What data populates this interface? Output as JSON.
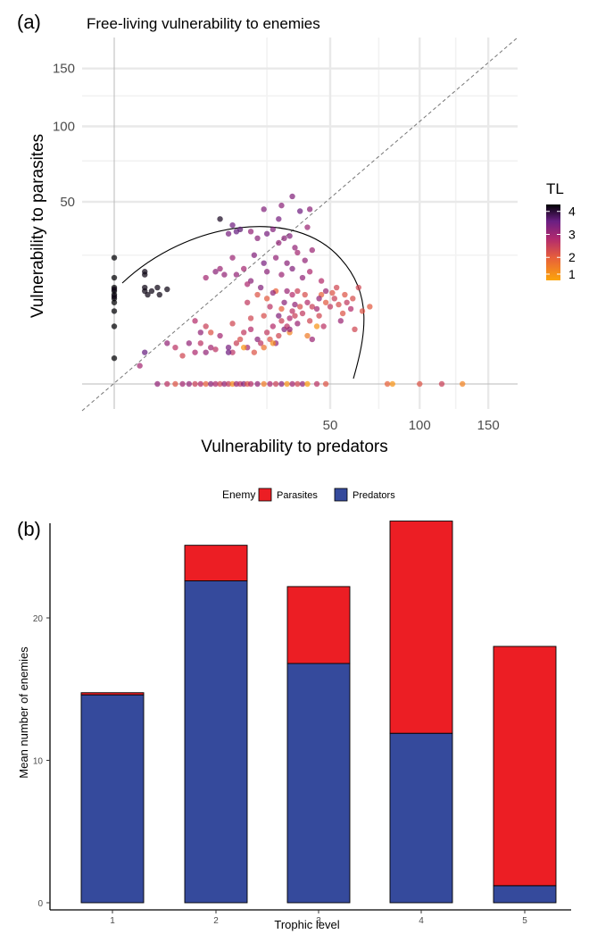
{
  "chart_data": [
    {
      "type": "scatter",
      "panel_label": "(a)",
      "title": "Free-living vulnerability to enemies",
      "xlabel": "Vulnerability to predators",
      "ylabel": "Vulnerability to parasites",
      "scale": "square-root",
      "x_ticks": [
        50,
        100,
        150
      ],
      "x_tick_labels": [
        "50",
        "100",
        "150"
      ],
      "y_ticks": [
        50,
        100,
        150
      ],
      "y_tick_labels": [
        "50",
        "100",
        "150"
      ],
      "xlim": [
        -3,
        170
      ],
      "ylim": [
        -3,
        175
      ],
      "grid": true,
      "reference_line": "y = x",
      "color_legend": {
        "title": "TL",
        "ticks": [
          4,
          3,
          2,
          1
        ],
        "range": [
          1,
          4.3
        ],
        "colors": [
          "#fca50a",
          "#e75f3b",
          "#b12a6e",
          "#6a1f83",
          "#000004"
        ]
      },
      "points": [
        {
          "x": 0,
          "y": 24,
          "tl": 4.3
        },
        {
          "x": 0,
          "y": 17,
          "tl": 4.3
        },
        {
          "x": 0,
          "y": 14,
          "tl": 4.3
        },
        {
          "x": 0,
          "y": 13,
          "tl": 4.3
        },
        {
          "x": 0,
          "y": 12,
          "tl": 4.3
        },
        {
          "x": 0,
          "y": 11,
          "tl": 4.3
        },
        {
          "x": 0,
          "y": 10,
          "tl": 4.3
        },
        {
          "x": 0,
          "y": 8,
          "tl": 4.3
        },
        {
          "x": 0,
          "y": 5,
          "tl": 4.3
        },
        {
          "x": 0,
          "y": 1,
          "tl": 4.3
        },
        {
          "x": 0,
          "y": 13.5,
          "tl": 4.2
        },
        {
          "x": 0,
          "y": 11.5,
          "tl": 4.2
        },
        {
          "x": 1,
          "y": 19,
          "tl": 4.2
        },
        {
          "x": 1,
          "y": 18,
          "tl": 4.2
        },
        {
          "x": 1,
          "y": 14,
          "tl": 4.2
        },
        {
          "x": 1,
          "y": 13,
          "tl": 4.2
        },
        {
          "x": 1.2,
          "y": 12,
          "tl": 4.2
        },
        {
          "x": 1.5,
          "y": 13,
          "tl": 4.2
        },
        {
          "x": 2,
          "y": 14,
          "tl": 4.2
        },
        {
          "x": 2.2,
          "y": 12,
          "tl": 4.2
        },
        {
          "x": 3,
          "y": 13.5,
          "tl": 4.2
        },
        {
          "x": 1,
          "y": 1.5,
          "tl": 3.5
        },
        {
          "x": 0.7,
          "y": 0.5,
          "tl": 2.8
        },
        {
          "x": 3,
          "y": 2.5,
          "tl": 3.0
        },
        {
          "x": 4,
          "y": 2,
          "tl": 2.5
        },
        {
          "x": 5,
          "y": 1.2,
          "tl": 2.2
        },
        {
          "x": 6,
          "y": 2.5,
          "tl": 3.0
        },
        {
          "x": 7,
          "y": 1.5,
          "tl": 2.7
        },
        {
          "x": 8,
          "y": 2.5,
          "tl": 2.5
        },
        {
          "x": 9,
          "y": 1.5,
          "tl": 3.0
        },
        {
          "x": 10,
          "y": 2,
          "tl": 2.8
        },
        {
          "x": 11,
          "y": 1.8,
          "tl": 2.5
        },
        {
          "x": 8,
          "y": 4,
          "tl": 3.0
        },
        {
          "x": 10,
          "y": 4,
          "tl": 2.0
        },
        {
          "x": 12,
          "y": 3.5,
          "tl": 2.8
        },
        {
          "x": 14,
          "y": 2,
          "tl": 3.3
        },
        {
          "x": 15,
          "y": 1.5,
          "tl": 2.5
        },
        {
          "x": 16,
          "y": 2.5,
          "tl": 2.3
        },
        {
          "x": 17,
          "y": 3,
          "tl": 2.1
        },
        {
          "x": 18,
          "y": 4,
          "tl": 2.4
        },
        {
          "x": 19,
          "y": 2,
          "tl": 2.8
        },
        {
          "x": 20,
          "y": 4.5,
          "tl": 2.6
        },
        {
          "x": 21,
          "y": 1.5,
          "tl": 2.0
        },
        {
          "x": 22,
          "y": 3,
          "tl": 3.1
        },
        {
          "x": 23,
          "y": 2.5,
          "tl": 2.5
        },
        {
          "x": 24,
          "y": 2,
          "tl": 1.6
        },
        {
          "x": 25,
          "y": 4,
          "tl": 2.4
        },
        {
          "x": 26,
          "y": 3,
          "tl": 2.0
        },
        {
          "x": 27,
          "y": 5,
          "tl": 2.6
        },
        {
          "x": 28,
          "y": 2.5,
          "tl": 3.0
        },
        {
          "x": 29,
          "y": 3.5,
          "tl": 2.2
        },
        {
          "x": 30,
          "y": 6,
          "tl": 2.3
        },
        {
          "x": 31,
          "y": 4.5,
          "tl": 3.2
        },
        {
          "x": 32,
          "y": 5,
          "tl": 2.5
        },
        {
          "x": 33,
          "y": 6.5,
          "tl": 2.7
        },
        {
          "x": 34,
          "y": 8,
          "tl": 2.5
        },
        {
          "x": 35,
          "y": 7,
          "tl": 2.3
        },
        {
          "x": 36,
          "y": 5.5,
          "tl": 2.9
        },
        {
          "x": 37,
          "y": 9,
          "tl": 2.1
        },
        {
          "x": 38,
          "y": 7.5,
          "tl": 2.4
        },
        {
          "x": 40,
          "y": 10,
          "tl": 2.6
        },
        {
          "x": 41,
          "y": 6,
          "tl": 2.2
        },
        {
          "x": 42,
          "y": 9,
          "tl": 2.3
        },
        {
          "x": 44,
          "y": 8.5,
          "tl": 2.8
        },
        {
          "x": 45,
          "y": 7,
          "tl": 2.2
        },
        {
          "x": 47,
          "y": 5,
          "tl": 2.5
        },
        {
          "x": 48,
          "y": 10,
          "tl": 1.9
        },
        {
          "x": 50,
          "y": 9,
          "tl": 2.4
        },
        {
          "x": 52,
          "y": 11,
          "tl": 2.3
        },
        {
          "x": 54,
          "y": 9.5,
          "tl": 2.1
        },
        {
          "x": 56,
          "y": 7.5,
          "tl": 2.0
        },
        {
          "x": 58,
          "y": 10,
          "tl": 2.4
        },
        {
          "x": 60,
          "y": 8.5,
          "tl": 2.6
        },
        {
          "x": 62,
          "y": 4.5,
          "tl": 2.2
        },
        {
          "x": 66,
          "y": 8,
          "tl": 2.0
        },
        {
          "x": 51,
          "y": 12.5,
          "tl": 2.0
        },
        {
          "x": 55,
          "y": 6,
          "tl": 2.9
        },
        {
          "x": 46,
          "y": 12,
          "tl": 1.8
        },
        {
          "x": 39,
          "y": 12,
          "tl": 2.1
        },
        {
          "x": 30,
          "y": 8.5,
          "tl": 1.8
        },
        {
          "x": 24,
          "y": 7,
          "tl": 2.1
        },
        {
          "x": 20,
          "y": 6.5,
          "tl": 2.2
        },
        {
          "x": 26,
          "y": 9,
          "tl": 2.5
        },
        {
          "x": 19,
          "y": 10,
          "tl": 2.4
        },
        {
          "x": 15,
          "y": 5.5,
          "tl": 2.2
        },
        {
          "x": 22,
          "y": 12,
          "tl": 2.0
        },
        {
          "x": 34,
          "y": 12,
          "tl": 2.6
        },
        {
          "x": 36,
          "y": 13,
          "tl": 2.3
        },
        {
          "x": 28,
          "y": 13,
          "tl": 1.8
        },
        {
          "x": 25,
          "y": 11,
          "tl": 1.9
        },
        {
          "x": 33,
          "y": 4,
          "tl": 1.4
        },
        {
          "x": 40,
          "y": 3.5,
          "tl": 1.5
        },
        {
          "x": 27,
          "y": 2.5,
          "tl": 1.3
        },
        {
          "x": 18,
          "y": 2,
          "tl": 1.2
        },
        {
          "x": 44,
          "y": 5,
          "tl": 1.2
        },
        {
          "x": 7,
          "y": 6,
          "tl": 2.6
        },
        {
          "x": 9,
          "y": 5,
          "tl": 2.3
        },
        {
          "x": 15,
          "y": 38,
          "tl": 3.4
        },
        {
          "x": 16,
          "y": 35,
          "tl": 3.5
        },
        {
          "x": 17,
          "y": 36,
          "tl": 3.6
        },
        {
          "x": 14,
          "y": 34,
          "tl": 3.3
        },
        {
          "x": 20,
          "y": 35,
          "tl": 3.0
        },
        {
          "x": 22,
          "y": 32,
          "tl": 3.1
        },
        {
          "x": 25,
          "y": 34,
          "tl": 3.3
        },
        {
          "x": 27,
          "y": 36,
          "tl": 3.2
        },
        {
          "x": 29,
          "y": 30,
          "tl": 3.0
        },
        {
          "x": 31,
          "y": 32,
          "tl": 3.1
        },
        {
          "x": 33,
          "y": 33,
          "tl": 3.2
        },
        {
          "x": 12,
          "y": 41,
          "tl": 4.1
        },
        {
          "x": 29,
          "y": 41,
          "tl": 3.3
        },
        {
          "x": 34,
          "y": 53,
          "tl": 3.2
        },
        {
          "x": 37,
          "y": 45,
          "tl": 3.4
        },
        {
          "x": 30,
          "y": 48,
          "tl": 3.1
        },
        {
          "x": 24,
          "y": 46,
          "tl": 3.2
        },
        {
          "x": 41,
          "y": 46,
          "tl": 3.1
        },
        {
          "x": 40,
          "y": 37,
          "tl": 2.9
        },
        {
          "x": 35,
          "y": 28,
          "tl": 3.0
        },
        {
          "x": 21,
          "y": 25,
          "tl": 3.2
        },
        {
          "x": 24,
          "y": 22,
          "tl": 3.3
        },
        {
          "x": 28,
          "y": 24,
          "tl": 3.0
        },
        {
          "x": 32,
          "y": 22,
          "tl": 3.1
        },
        {
          "x": 36,
          "y": 26,
          "tl": 2.8
        },
        {
          "x": 39,
          "y": 23,
          "tl": 3.0
        },
        {
          "x": 42,
          "y": 27,
          "tl": 2.9
        },
        {
          "x": 25,
          "y": 19,
          "tl": 3.1
        },
        {
          "x": 30,
          "y": 18,
          "tl": 2.9
        },
        {
          "x": 34,
          "y": 20,
          "tl": 3.2
        },
        {
          "x": 38,
          "y": 17,
          "tl": 3.0
        },
        {
          "x": 41,
          "y": 19,
          "tl": 2.7
        },
        {
          "x": 46,
          "y": 16,
          "tl": 2.6
        },
        {
          "x": 20,
          "y": 16,
          "tl": 3.1
        },
        {
          "x": 23,
          "y": 14,
          "tl": 3.2
        },
        {
          "x": 27,
          "y": 12.5,
          "tl": 3.0
        },
        {
          "x": 32,
          "y": 13,
          "tl": 2.9
        },
        {
          "x": 15,
          "y": 24,
          "tl": 2.9
        },
        {
          "x": 18,
          "y": 20,
          "tl": 2.8
        },
        {
          "x": 12,
          "y": 20,
          "tl": 2.9
        },
        {
          "x": 13,
          "y": 18,
          "tl": 3.0
        },
        {
          "x": 11,
          "y": 19,
          "tl": 3.1
        },
        {
          "x": 9,
          "y": 17,
          "tl": 2.8
        },
        {
          "x": 16,
          "y": 18,
          "tl": 3.0
        },
        {
          "x": 19,
          "y": 15,
          "tl": 2.7
        },
        {
          "x": 35,
          "y": 9.5,
          "tl": 3.0
        },
        {
          "x": 31,
          "y": 10,
          "tl": 3.1
        },
        {
          "x": 29,
          "y": 7,
          "tl": 3.2
        },
        {
          "x": 33,
          "y": 4.5,
          "tl": 3.0
        },
        {
          "x": 42,
          "y": 3,
          "tl": 2.9
        },
        {
          "x": 45,
          "y": 11,
          "tl": 3.0
        },
        {
          "x": 48,
          "y": 13,
          "tl": 2.9
        },
        {
          "x": 53,
          "y": 14,
          "tl": 2.2
        },
        {
          "x": 57,
          "y": 12,
          "tl": 2.0
        },
        {
          "x": 61,
          "y": 11,
          "tl": 2.1
        },
        {
          "x": 64,
          "y": 14,
          "tl": 2.2
        },
        {
          "x": 70,
          "y": 9,
          "tl": 1.9
        },
        {
          "x": 14,
          "y": 1.5,
          "tl": 3.4
        },
        {
          "x": 2,
          "y": 0,
          "tl": 3.0
        },
        {
          "x": 3,
          "y": 0,
          "tl": 2.5
        },
        {
          "x": 4,
          "y": 0,
          "tl": 2.0
        },
        {
          "x": 5,
          "y": 0,
          "tl": 2.8
        },
        {
          "x": 6,
          "y": 0,
          "tl": 3.0
        },
        {
          "x": 7,
          "y": 0,
          "tl": 2.3
        },
        {
          "x": 8,
          "y": 0,
          "tl": 2.6
        },
        {
          "x": 9,
          "y": 0,
          "tl": 1.8
        },
        {
          "x": 10,
          "y": 0,
          "tl": 3.1
        },
        {
          "x": 11,
          "y": 0,
          "tl": 2.7
        },
        {
          "x": 12,
          "y": 0,
          "tl": 2.2
        },
        {
          "x": 13,
          "y": 0,
          "tl": 3.0
        },
        {
          "x": 14,
          "y": 0,
          "tl": 2.4
        },
        {
          "x": 15,
          "y": 0,
          "tl": 1.3
        },
        {
          "x": 16,
          "y": 0,
          "tl": 2.9
        },
        {
          "x": 17,
          "y": 0,
          "tl": 2.5
        },
        {
          "x": 18,
          "y": 0,
          "tl": 3.2
        },
        {
          "x": 19,
          "y": 0,
          "tl": 2.0
        },
        {
          "x": 20,
          "y": 0,
          "tl": 2.6
        },
        {
          "x": 22,
          "y": 0,
          "tl": 3.0
        },
        {
          "x": 24,
          "y": 0,
          "tl": 1.5
        },
        {
          "x": 26,
          "y": 0,
          "tl": 2.7
        },
        {
          "x": 28,
          "y": 0,
          "tl": 2.3
        },
        {
          "x": 30,
          "y": 0,
          "tl": 3.1
        },
        {
          "x": 32,
          "y": 0,
          "tl": 1.2
        },
        {
          "x": 34,
          "y": 0,
          "tl": 2.8
        },
        {
          "x": 36,
          "y": 0,
          "tl": 2.2
        },
        {
          "x": 38,
          "y": 0,
          "tl": 3.0
        },
        {
          "x": 40,
          "y": 0,
          "tl": 1.1
        },
        {
          "x": 44,
          "y": 0,
          "tl": 2.5
        },
        {
          "x": 48,
          "y": 0,
          "tl": 2.0
        },
        {
          "x": 80,
          "y": 0,
          "tl": 1.8
        },
        {
          "x": 83,
          "y": 0,
          "tl": 1.2
        },
        {
          "x": 100,
          "y": 0,
          "tl": 2.0
        },
        {
          "x": 115,
          "y": 0,
          "tl": 2.3
        },
        {
          "x": 130,
          "y": 0,
          "tl": 1.4
        }
      ]
    },
    {
      "type": "bar",
      "stacked": true,
      "panel_label": "(b)",
      "xlabel": "Trophic level",
      "ylabel": "Mean number of enemies",
      "categories": [
        "1",
        "2",
        "3",
        "4",
        "5"
      ],
      "ylim": [
        0,
        27.5
      ],
      "y_ticks": [
        0,
        10,
        20
      ],
      "legend_title": "Enemy",
      "legend_position": "top",
      "series": [
        {
          "name": "Predators",
          "color": "#354a9c",
          "values": [
            14.6,
            22.6,
            16.8,
            11.9,
            1.2
          ]
        },
        {
          "name": "Parasites",
          "color": "#ec1e24",
          "values": [
            0.15,
            2.5,
            5.4,
            14.9,
            16.8
          ]
        }
      ]
    }
  ]
}
